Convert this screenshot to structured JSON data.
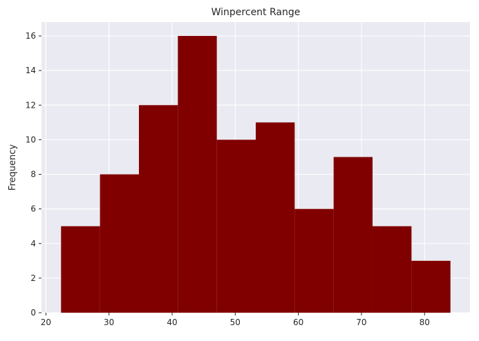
{
  "chart_data": {
    "type": "bar",
    "subtype": "histogram",
    "title": "Winpercent Range",
    "xlabel": "",
    "ylabel": "Frequency",
    "bin_edges": [
      22.4,
      28.57,
      34.74,
      40.91,
      47.08,
      53.25,
      59.42,
      65.59,
      71.76,
      77.93,
      84.1
    ],
    "values": [
      5,
      8,
      12,
      16,
      10,
      11,
      6,
      9,
      5,
      3
    ],
    "xlim": [
      19.3,
      87.2
    ],
    "ylim": [
      0,
      16.8
    ],
    "xticks": [
      20,
      30,
      40,
      50,
      60,
      70,
      80
    ],
    "yticks": [
      0,
      2,
      4,
      6,
      8,
      10,
      12,
      14,
      16
    ],
    "grid": true,
    "colors": {
      "bar": "#800000",
      "plot_background": "#eaeaf2",
      "grid": "#ffffff"
    }
  }
}
